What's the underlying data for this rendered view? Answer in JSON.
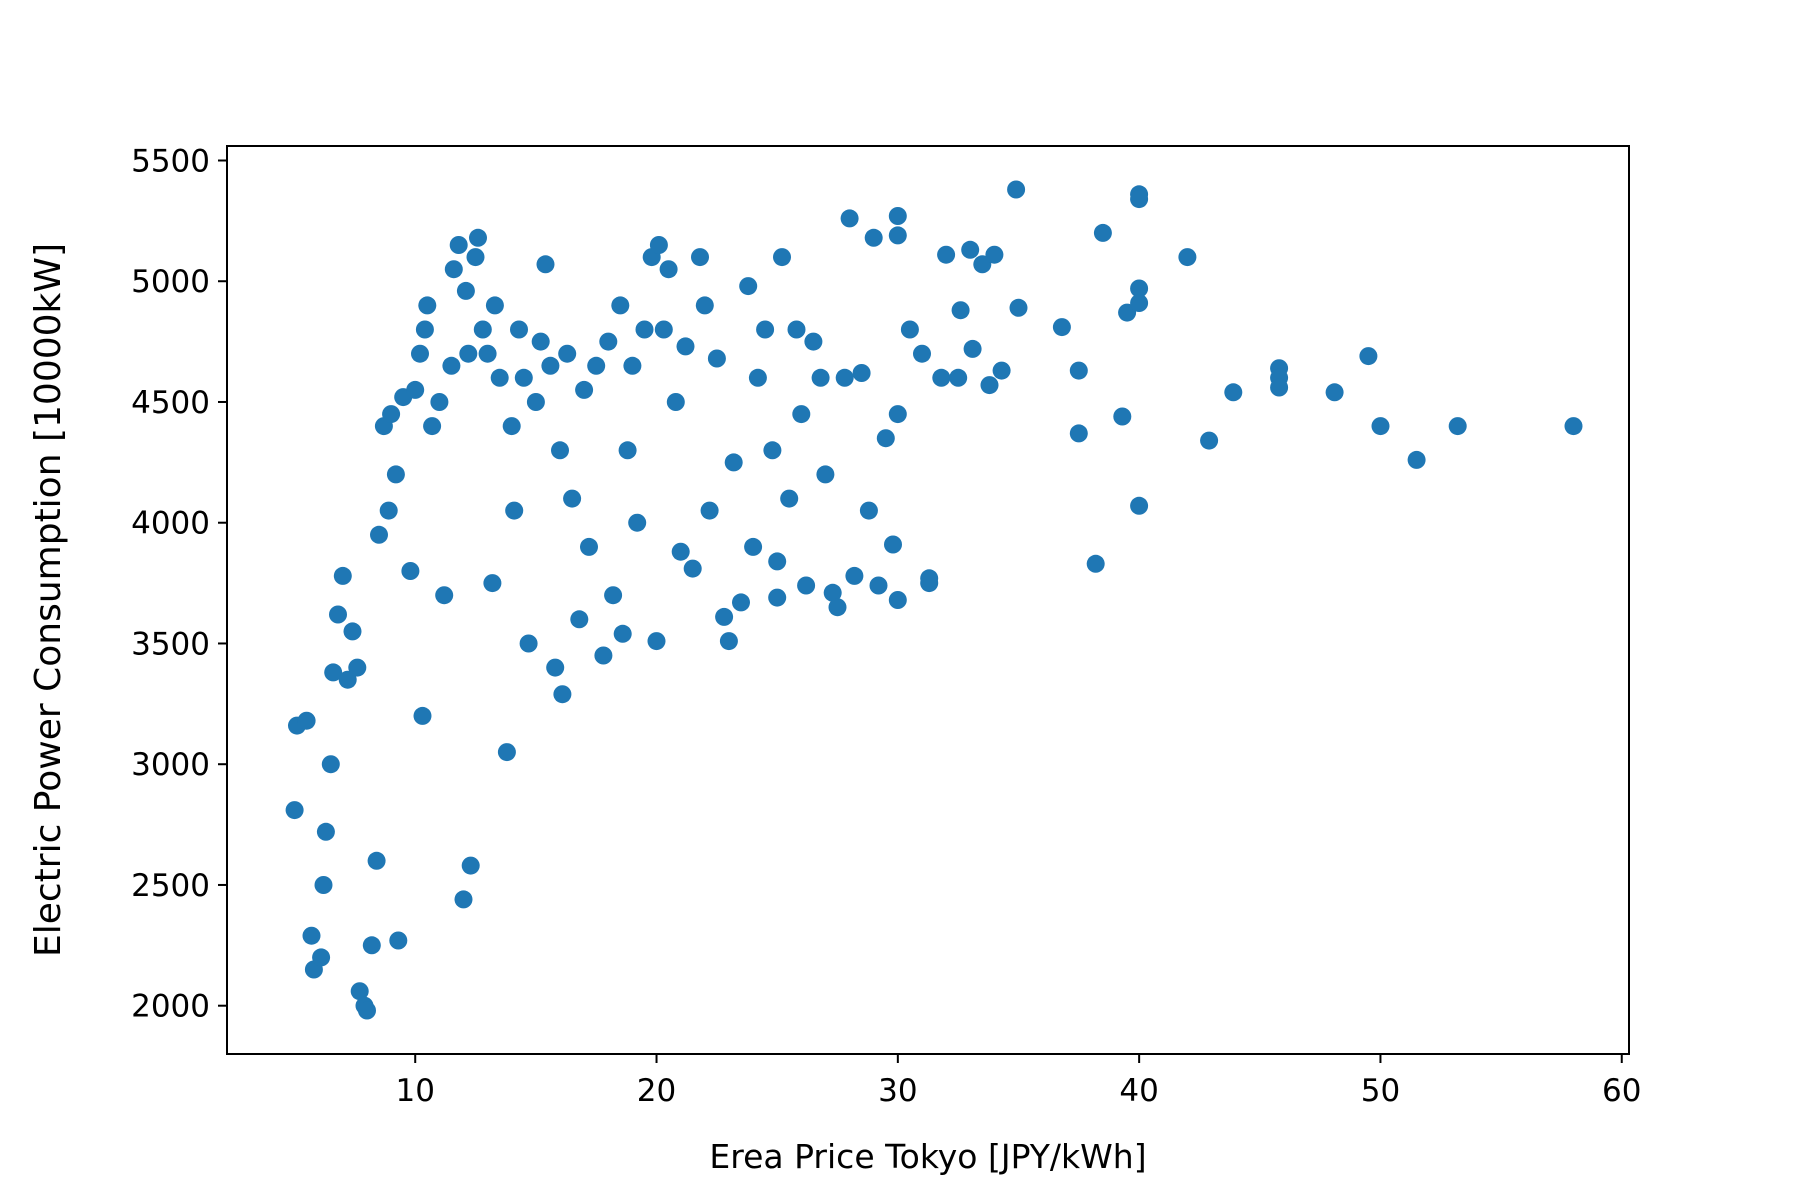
{
  "chart_data": {
    "type": "scatter",
    "title": "",
    "xlabel": "Erea Price Tokyo [JPY/kWh]",
    "ylabel": "Electric Power Consumption [10000kW]",
    "xlim": [
      2.2,
      60.3
    ],
    "ylim": [
      1800,
      5560
    ],
    "xticks": [
      10,
      20,
      30,
      40,
      50,
      60
    ],
    "xtick_labels": [
      "10",
      "20",
      "30",
      "40",
      "50",
      "60"
    ],
    "yticks": [
      2000,
      2500,
      3000,
      3500,
      4000,
      4500,
      5000,
      5500
    ],
    "ytick_labels": [
      "2000",
      "2500",
      "3000",
      "3500",
      "4000",
      "4500",
      "5000",
      "5500"
    ],
    "grid": false,
    "legend": "none",
    "marker_color": "#1f77b4",
    "series": [
      {
        "values": [
          [
            5.0,
            2810
          ],
          [
            5.1,
            3160
          ],
          [
            5.5,
            3180
          ],
          [
            5.7,
            2290
          ],
          [
            5.8,
            2150
          ],
          [
            6.1,
            2200
          ],
          [
            6.2,
            2500
          ],
          [
            6.3,
            2720
          ],
          [
            6.5,
            3000
          ],
          [
            6.6,
            3380
          ],
          [
            6.8,
            3620
          ],
          [
            7.0,
            3780
          ],
          [
            7.2,
            3350
          ],
          [
            7.4,
            3550
          ],
          [
            7.6,
            3400
          ],
          [
            7.7,
            2060
          ],
          [
            7.9,
            2000
          ],
          [
            8.0,
            1980
          ],
          [
            8.2,
            2250
          ],
          [
            8.4,
            2600
          ],
          [
            8.5,
            3950
          ],
          [
            8.7,
            4400
          ],
          [
            8.9,
            4050
          ],
          [
            9.0,
            4450
          ],
          [
            9.2,
            4200
          ],
          [
            9.3,
            2270
          ],
          [
            9.5,
            4520
          ],
          [
            9.8,
            3800
          ],
          [
            10.0,
            4550
          ],
          [
            10.2,
            4700
          ],
          [
            10.3,
            3200
          ],
          [
            10.4,
            4800
          ],
          [
            10.5,
            4900
          ],
          [
            10.7,
            4400
          ],
          [
            11.0,
            4500
          ],
          [
            11.2,
            3700
          ],
          [
            11.5,
            4650
          ],
          [
            11.6,
            5050
          ],
          [
            11.8,
            5150
          ],
          [
            12.0,
            2440
          ],
          [
            12.1,
            4960
          ],
          [
            12.2,
            4700
          ],
          [
            12.3,
            2580
          ],
          [
            12.5,
            5100
          ],
          [
            12.6,
            5180
          ],
          [
            12.8,
            4800
          ],
          [
            13.0,
            4700
          ],
          [
            13.2,
            3750
          ],
          [
            13.3,
            4900
          ],
          [
            13.5,
            4600
          ],
          [
            13.8,
            3050
          ],
          [
            14.0,
            4400
          ],
          [
            14.1,
            4050
          ],
          [
            14.3,
            4800
          ],
          [
            14.5,
            4600
          ],
          [
            14.7,
            3500
          ],
          [
            15.0,
            4500
          ],
          [
            15.2,
            4750
          ],
          [
            15.4,
            5070
          ],
          [
            15.6,
            4650
          ],
          [
            15.8,
            3400
          ],
          [
            16.0,
            4300
          ],
          [
            16.1,
            3290
          ],
          [
            16.3,
            4700
          ],
          [
            16.5,
            4100
          ],
          [
            16.8,
            3600
          ],
          [
            17.0,
            4550
          ],
          [
            17.2,
            3900
          ],
          [
            17.5,
            4650
          ],
          [
            17.8,
            3450
          ],
          [
            18.0,
            4750
          ],
          [
            18.2,
            3700
          ],
          [
            18.5,
            4900
          ],
          [
            18.6,
            3540
          ],
          [
            18.8,
            4300
          ],
          [
            19.0,
            4650
          ],
          [
            19.2,
            4000
          ],
          [
            19.5,
            4800
          ],
          [
            19.8,
            5100
          ],
          [
            20.0,
            3510
          ],
          [
            20.1,
            5150
          ],
          [
            20.3,
            4800
          ],
          [
            20.5,
            5050
          ],
          [
            20.8,
            4500
          ],
          [
            21.0,
            3880
          ],
          [
            21.2,
            4730
          ],
          [
            21.5,
            3810
          ],
          [
            21.8,
            5100
          ],
          [
            22.0,
            4900
          ],
          [
            22.2,
            4050
          ],
          [
            22.5,
            4680
          ],
          [
            22.8,
            3610
          ],
          [
            23.0,
            3510
          ],
          [
            23.2,
            4250
          ],
          [
            23.5,
            3670
          ],
          [
            23.8,
            4980
          ],
          [
            24.0,
            3900
          ],
          [
            24.2,
            4600
          ],
          [
            24.5,
            4800
          ],
          [
            24.8,
            4300
          ],
          [
            25.0,
            3690
          ],
          [
            25.0,
            3840
          ],
          [
            25.2,
            5100
          ],
          [
            25.5,
            4100
          ],
          [
            25.8,
            4800
          ],
          [
            26.0,
            4450
          ],
          [
            26.2,
            3740
          ],
          [
            26.5,
            4750
          ],
          [
            26.8,
            4600
          ],
          [
            27.0,
            4200
          ],
          [
            27.3,
            3710
          ],
          [
            27.5,
            3650
          ],
          [
            27.8,
            4600
          ],
          [
            28.0,
            5260
          ],
          [
            28.2,
            3780
          ],
          [
            28.5,
            4620
          ],
          [
            28.8,
            4050
          ],
          [
            29.0,
            5180
          ],
          [
            29.2,
            3740
          ],
          [
            29.5,
            4350
          ],
          [
            29.8,
            3910
          ],
          [
            30.0,
            5270
          ],
          [
            30.0,
            5190
          ],
          [
            30.0,
            3680
          ],
          [
            30.0,
            4450
          ],
          [
            30.5,
            4800
          ],
          [
            31.0,
            4700
          ],
          [
            31.3,
            3750
          ],
          [
            31.3,
            3770
          ],
          [
            31.8,
            4600
          ],
          [
            32.0,
            5110
          ],
          [
            32.5,
            4600
          ],
          [
            32.6,
            4880
          ],
          [
            33.0,
            5130
          ],
          [
            33.1,
            4720
          ],
          [
            33.5,
            5070
          ],
          [
            33.8,
            4570
          ],
          [
            34.0,
            5110
          ],
          [
            34.3,
            4630
          ],
          [
            34.9,
            5380
          ],
          [
            35.0,
            4890
          ],
          [
            36.8,
            4810
          ],
          [
            37.5,
            4630
          ],
          [
            37.5,
            4370
          ],
          [
            38.2,
            3830
          ],
          [
            38.5,
            5200
          ],
          [
            39.3,
            4440
          ],
          [
            39.5,
            4870
          ],
          [
            40.0,
            5360
          ],
          [
            40.0,
            5340
          ],
          [
            40.0,
            4970
          ],
          [
            40.0,
            4910
          ],
          [
            40.0,
            4070
          ],
          [
            42.0,
            5100
          ],
          [
            42.9,
            4340
          ],
          [
            43.9,
            4540
          ],
          [
            45.8,
            4640
          ],
          [
            45.8,
            4600
          ],
          [
            45.8,
            4560
          ],
          [
            48.1,
            4540
          ],
          [
            49.5,
            4690
          ],
          [
            50.0,
            4400
          ],
          [
            51.5,
            4260
          ],
          [
            53.2,
            4400
          ],
          [
            58.0,
            4400
          ]
        ]
      }
    ]
  }
}
